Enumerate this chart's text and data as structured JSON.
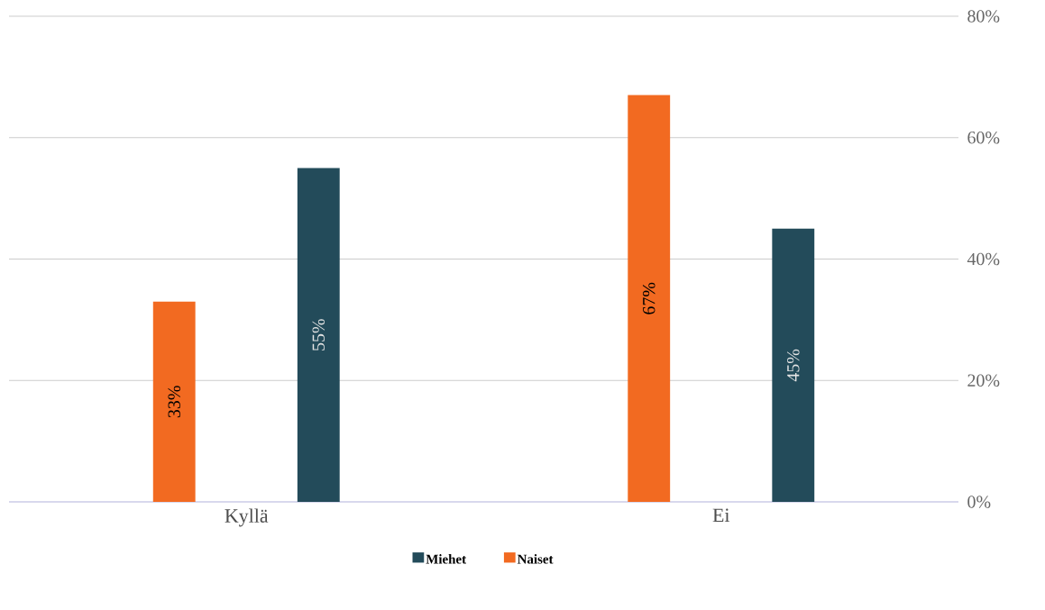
{
  "chart_data": {
    "type": "bar",
    "categories": [
      "Kyllä",
      "Ei"
    ],
    "series": [
      {
        "name": "Naiset",
        "color": "#f26a21",
        "values": [
          33,
          67
        ],
        "value_labels": [
          "33%",
          "67%"
        ]
      },
      {
        "name": "Miehet",
        "color": "#234b5a",
        "values": [
          55,
          45
        ],
        "value_labels": [
          "55%",
          "45%"
        ]
      }
    ],
    "ylim": [
      0,
      80
    ],
    "yticks": [
      {
        "value": 0,
        "label": "0%"
      },
      {
        "value": 20,
        "label": "20%"
      },
      {
        "value": 40,
        "label": "40%"
      },
      {
        "value": 60,
        "label": "60%"
      },
      {
        "value": 80,
        "label": "80%"
      }
    ],
    "grid": "y",
    "legend": "bottom"
  }
}
